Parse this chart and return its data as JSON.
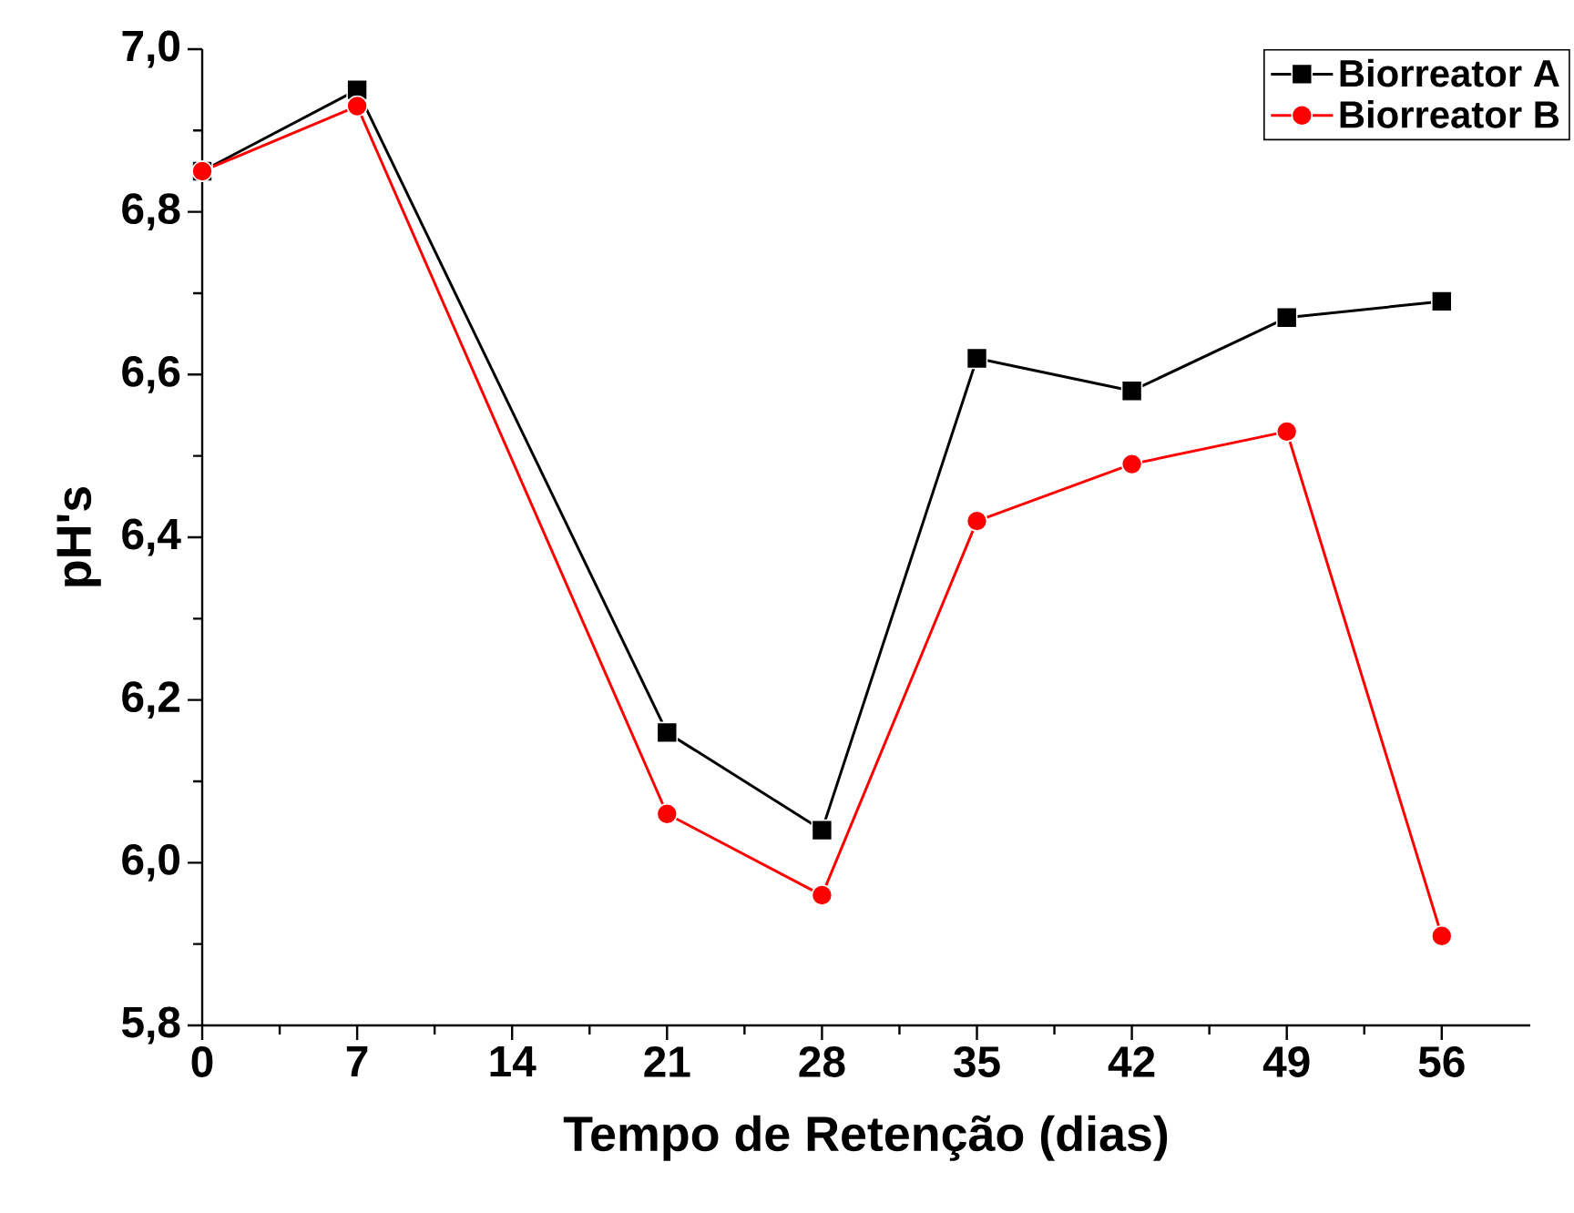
{
  "chart_data": {
    "type": "line",
    "xlabel": "Tempo de Retenção (dias)",
    "ylabel": "pH's",
    "x": [
      0,
      7,
      21,
      28,
      35,
      42,
      49,
      56
    ],
    "series": [
      {
        "name": "Biorreator A",
        "color": "#000000",
        "marker": "square",
        "values": [
          6.85,
          6.95,
          6.16,
          6.04,
          6.62,
          6.58,
          6.67,
          6.69
        ]
      },
      {
        "name": "Biorreator B",
        "color": "#ff0000",
        "marker": "circle",
        "values": [
          6.85,
          6.93,
          6.06,
          5.96,
          6.42,
          6.49,
          6.53,
          5.91
        ]
      }
    ],
    "xlim": [
      0,
      60
    ],
    "xticks": [
      0,
      7,
      14,
      21,
      28,
      35,
      42,
      49,
      56
    ],
    "ylim": [
      5.8,
      7.0
    ],
    "yticks": [
      {
        "value": 5.8,
        "label": "5,8"
      },
      {
        "value": 6.0,
        "label": "6,0"
      },
      {
        "value": 6.2,
        "label": "6,2"
      },
      {
        "value": 6.4,
        "label": "6,4"
      },
      {
        "value": 6.6,
        "label": "6,6"
      },
      {
        "value": 6.8,
        "label": "6,8"
      },
      {
        "value": 7.0,
        "label": "7,0"
      }
    ],
    "legend": "top right",
    "line_style": "solid",
    "grid": false
  }
}
